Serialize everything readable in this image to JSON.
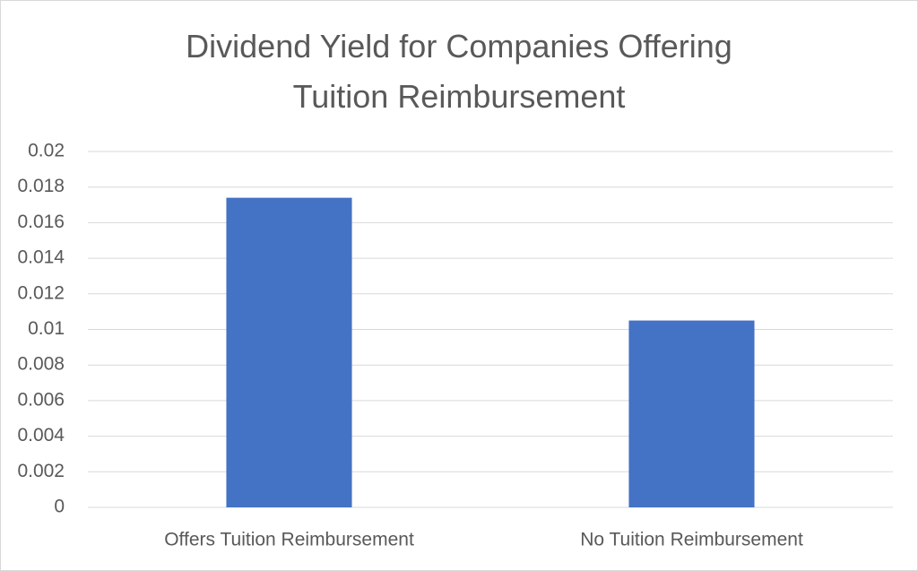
{
  "chart_data": {
    "type": "bar",
    "title": "Dividend Yield for Companies Offering Tuition Reimbursement",
    "categories": [
      "Offers Tuition Reimbursement",
      "No Tuition Reimbursement"
    ],
    "values": [
      0.0174,
      0.0105
    ],
    "color": "#4472c4",
    "ylim": [
      0,
      0.02
    ],
    "yticks": [
      0,
      0.002,
      0.004,
      0.006,
      0.008,
      0.01,
      0.012,
      0.014,
      0.016,
      0.018,
      0.02
    ],
    "grid": true
  }
}
